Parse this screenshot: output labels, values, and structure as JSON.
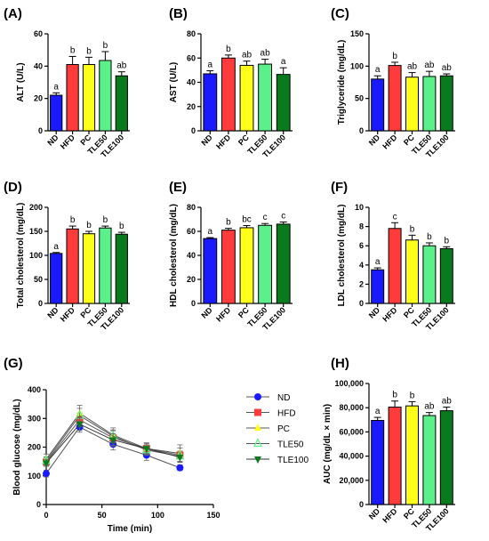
{
  "colors": {
    "ND": "#1a1aff",
    "HFD": "#ff3b3b",
    "PC": "#ffff1a",
    "TLE50": "#5cf08a",
    "TLE100": "#0a7a1e"
  },
  "chart_data": [
    {
      "panel": "(A)",
      "type": "bar",
      "ylabel": "ALT  (U/L)",
      "ylim": [
        0,
        60
      ],
      "yticks": [
        "0",
        "20",
        "40",
        "60"
      ],
      "ytickvals": [
        0,
        20,
        40,
        60
      ],
      "categories": [
        "ND",
        "HFD",
        "PC",
        "TLE50",
        "TLE100"
      ],
      "values": [
        22,
        41,
        41,
        43.5,
        34
      ],
      "errors": [
        1.5,
        5,
        4.5,
        5.5,
        2.5
      ],
      "letters": [
        "a",
        "b",
        "b",
        "b",
        "ab"
      ]
    },
    {
      "panel": "(B)",
      "type": "bar",
      "ylabel": "AST  (U/L)",
      "ylim": [
        0,
        80
      ],
      "yticks": [
        "0",
        "20",
        "40",
        "60",
        "80"
      ],
      "ytickvals": [
        0,
        20,
        40,
        60,
        80
      ],
      "categories": [
        "ND",
        "HFD",
        "PC",
        "TLE50",
        "TLE100"
      ],
      "values": [
        47,
        60,
        54,
        55,
        46.5
      ],
      "errors": [
        2.5,
        2.5,
        3.5,
        4,
        5.5
      ],
      "letters": [
        "a",
        "b",
        "ab",
        "ab",
        "a"
      ]
    },
    {
      "panel": "(C)",
      "type": "bar",
      "ylabel": "Triglyceride (mg/dL)",
      "ylim": [
        0,
        150
      ],
      "yticks": [
        "0",
        "50",
        "100",
        "150"
      ],
      "ytickvals": [
        0,
        50,
        100,
        150
      ],
      "categories": [
        "ND",
        "HFD",
        "PC",
        "TLE50",
        "TLE100"
      ],
      "values": [
        80,
        101,
        83,
        84,
        85
      ],
      "errors": [
        5,
        5,
        7,
        8,
        3
      ],
      "letters": [
        "a",
        "b",
        "ab",
        "ab",
        "ab"
      ]
    },
    {
      "panel": "(D)",
      "type": "bar",
      "ylabel": "Total cholesterol (mg/dL)",
      "ylim": [
        0,
        200
      ],
      "yticks": [
        "0",
        "50",
        "100",
        "150",
        "200"
      ],
      "ytickvals": [
        0,
        50,
        100,
        150,
        200
      ],
      "categories": [
        "ND",
        "HFD",
        "PC",
        "TLE50",
        "TLE100"
      ],
      "values": [
        104,
        155,
        145,
        157,
        144
      ],
      "errors": [
        2,
        6,
        5,
        4,
        4
      ],
      "letters": [
        "a",
        "b",
        "b",
        "b",
        "b"
      ]
    },
    {
      "panel": "(E)",
      "type": "bar",
      "ylabel": "HDL cholesterol (mg/dL)",
      "ylim": [
        0,
        80
      ],
      "yticks": [
        "0",
        "20",
        "40",
        "60",
        "80"
      ],
      "ytickvals": [
        0,
        20,
        40,
        60,
        80
      ],
      "categories": [
        "ND",
        "HFD",
        "PC",
        "TLE50",
        "TLE100"
      ],
      "values": [
        54,
        61,
        63,
        65,
        66
      ],
      "errors": [
        0.8,
        1.5,
        1.8,
        1.5,
        1.8
      ],
      "letters": [
        "a",
        "b",
        "bc",
        "c",
        "c"
      ]
    },
    {
      "panel": "(F)",
      "type": "bar",
      "ylabel": "LDL cholesterol (mg/dL)",
      "ylim": [
        0,
        10
      ],
      "yticks": [
        "0",
        "2",
        "4",
        "6",
        "8",
        "10"
      ],
      "ytickvals": [
        0,
        2,
        4,
        6,
        8,
        10
      ],
      "categories": [
        "ND",
        "HFD",
        "PC",
        "TLE50",
        "TLE100"
      ],
      "values": [
        3.5,
        7.8,
        6.6,
        6.0,
        5.7
      ],
      "errors": [
        0.2,
        0.6,
        0.5,
        0.3,
        0.2
      ],
      "letters": [
        "a",
        "c",
        "b",
        "b",
        "b"
      ]
    },
    {
      "panel": "(G)",
      "type": "line",
      "xlabel": "Time (min)",
      "ylabel": "Blood glucose (mg/dL)",
      "xlim": [
        0,
        150
      ],
      "ylim": [
        0,
        400
      ],
      "xticks": [
        "0",
        "50",
        "100",
        "150"
      ],
      "xtickvals": [
        0,
        50,
        100,
        150
      ],
      "yticks": [
        "0",
        "100",
        "200",
        "300",
        "400"
      ],
      "ytickvals": [
        0,
        100,
        200,
        300,
        400
      ],
      "x": [
        0,
        30,
        60,
        90,
        120
      ],
      "series": [
        {
          "name": "ND",
          "values": [
            108,
            270,
            210,
            172,
            128
          ],
          "errors": [
            12,
            18,
            20,
            18,
            10
          ],
          "marker": "circle"
        },
        {
          "name": "HFD",
          "values": [
            148,
            295,
            232,
            195,
            172
          ],
          "errors": [
            14,
            24,
            25,
            20,
            25
          ],
          "marker": "square"
        },
        {
          "name": "PC",
          "values": [
            158,
            318,
            242,
            195,
            178
          ],
          "errors": [
            18,
            28,
            25,
            18,
            30
          ],
          "marker": "triangle-up"
        },
        {
          "name": "TLE50",
          "values": [
            152,
            310,
            238,
            190,
            168
          ],
          "errors": [
            14,
            25,
            22,
            18,
            18
          ],
          "marker": "triangle-up-open"
        },
        {
          "name": "TLE100",
          "values": [
            145,
            280,
            225,
            195,
            165
          ],
          "errors": [
            12,
            22,
            22,
            18,
            15
          ],
          "marker": "triangle-down"
        }
      ]
    },
    {
      "panel": "(H)",
      "type": "bar",
      "ylabel": "AUC  (mg/dL × min)",
      "ylim": [
        0,
        100000
      ],
      "yticks": [
        "0",
        "20,000",
        "40,000",
        "60,000",
        "80,000",
        "100,000"
      ],
      "ytickvals": [
        0,
        20000,
        40000,
        60000,
        80000,
        100000
      ],
      "categories": [
        "ND",
        "HFD",
        "PC",
        "TLE50",
        "TLE100"
      ],
      "values": [
        69500,
        80500,
        81500,
        73500,
        77500
      ],
      "errors": [
        2500,
        5000,
        3500,
        2500,
        3000
      ],
      "letters": [
        "a",
        "b",
        "b",
        "ab",
        "ab"
      ]
    }
  ]
}
